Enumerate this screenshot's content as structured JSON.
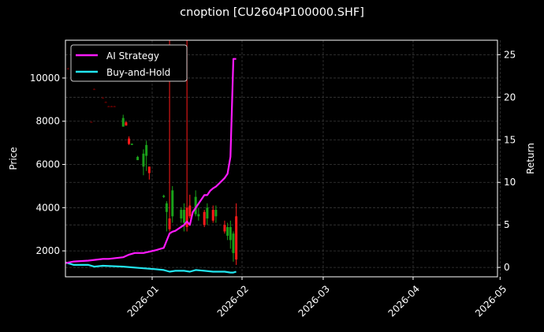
{
  "title": "cnoption [CU2604P100000.SHF]",
  "colors": {
    "background": "#000000",
    "ai_strategy": "#ff1aff",
    "buy_and_hold": "#22e6f0",
    "candle_up": "#1aa01a",
    "candle_down": "#ff1a1a",
    "candle_faint": "#5a0000",
    "grid": "#3a3a3a",
    "axis": "#ffffff"
  },
  "chart_data": {
    "type": "line",
    "title": "cnoption [CU2604P100000.SHF]",
    "xlabel": "",
    "ylabel_left": "Price",
    "ylabel_right": "Return",
    "x_ticks": [
      "2026-01",
      "2026-02",
      "2026-03",
      "2026-04",
      "2026-05"
    ],
    "y_left_ticks": [
      2000,
      4000,
      6000,
      8000,
      10000
    ],
    "y_right_ticks": [
      0,
      5,
      10,
      15,
      20,
      25
    ],
    "ylim_left": [
      800,
      11750
    ],
    "ylim_right": [
      -1.1,
      26.7
    ],
    "xlim": [
      "2025-12-02",
      "2026-05-01"
    ],
    "grid": true,
    "legend_position": "upper left",
    "legend": [
      "AI Strategy",
      "Buy-and-Hold"
    ],
    "series": [
      {
        "name": "AI Strategy",
        "axis": "right",
        "x": [
          "2025-12-02",
          "2025-12-05",
          "2025-12-10",
          "2025-12-15",
          "2025-12-17",
          "2025-12-22",
          "2025-12-24",
          "2025-12-26",
          "2025-12-29",
          "2026-01-02",
          "2026-01-05",
          "2026-01-07",
          "2026-01-08",
          "2026-01-09",
          "2026-01-12",
          "2026-01-13",
          "2026-01-14",
          "2026-01-15",
          "2026-01-19",
          "2026-01-20",
          "2026-01-21",
          "2026-01-22",
          "2026-01-23",
          "2026-01-26",
          "2026-01-27",
          "2026-01-28",
          "2026-01-29",
          "2026-01-30"
        ],
        "values": [
          0.5,
          0.7,
          0.8,
          1.0,
          1.0,
          1.2,
          1.5,
          1.7,
          1.7,
          2.0,
          2.3,
          4.0,
          4.2,
          4.3,
          5.0,
          5.4,
          5.0,
          6.5,
          8.5,
          8.5,
          9.0,
          9.3,
          9.5,
          10.5,
          11.0,
          13.0,
          24.5,
          24.5
        ]
      },
      {
        "name": "Buy-and-Hold",
        "axis": "right",
        "x": [
          "2025-12-02",
          "2025-12-05",
          "2025-12-10",
          "2025-12-12",
          "2025-12-15",
          "2025-12-22",
          "2025-12-29",
          "2026-01-02",
          "2026-01-05",
          "2026-01-07",
          "2026-01-09",
          "2026-01-12",
          "2026-01-14",
          "2026-01-16",
          "2026-01-19",
          "2026-01-22",
          "2026-01-26",
          "2026-01-28",
          "2026-01-29",
          "2026-01-30"
        ],
        "values": [
          0.6,
          0.3,
          0.3,
          0.1,
          0.2,
          0.1,
          -0.1,
          -0.2,
          -0.3,
          -0.5,
          -0.4,
          -0.4,
          -0.5,
          -0.3,
          -0.4,
          -0.5,
          -0.5,
          -0.6,
          -0.6,
          -0.5
        ]
      }
    ],
    "candles": [
      {
        "date": "2025-12-03",
        "open": 10450,
        "high": 10480,
        "low": 10430,
        "close": 10420,
        "kind": "faint"
      },
      {
        "date": "2025-12-06",
        "open": 10350,
        "high": 10380,
        "low": 10320,
        "close": 10330,
        "kind": "faint"
      },
      {
        "date": "2025-12-09",
        "open": 10000,
        "high": 10030,
        "low": 9980,
        "close": 9990,
        "kind": "faint"
      },
      {
        "date": "2025-12-12",
        "open": 9500,
        "high": 9520,
        "low": 9480,
        "close": 9490,
        "kind": "faint"
      },
      {
        "date": "2025-12-15",
        "open": 9100,
        "high": 9130,
        "low": 9080,
        "close": 9090,
        "kind": "faint"
      },
      {
        "date": "2025-12-16",
        "open": 8900,
        "high": 8920,
        "low": 8880,
        "close": 8890,
        "kind": "faint"
      },
      {
        "date": "2025-12-17",
        "open": 8700,
        "high": 8720,
        "low": 8680,
        "close": 8690,
        "kind": "faint"
      },
      {
        "date": "2025-12-18",
        "open": 8700,
        "high": 8720,
        "low": 8680,
        "close": 8690,
        "kind": "faint"
      },
      {
        "date": "2025-12-19",
        "open": 8700,
        "high": 8720,
        "low": 8680,
        "close": 8690,
        "kind": "faint"
      },
      {
        "date": "2025-12-11",
        "open": 7980,
        "high": 8000,
        "low": 7960,
        "close": 7970,
        "kind": "faint"
      },
      {
        "date": "2025-12-22",
        "open": 7750,
        "high": 8300,
        "low": 7750,
        "close": 8150,
        "kind": "up"
      },
      {
        "date": "2025-12-23",
        "open": 7950,
        "high": 8000,
        "low": 7800,
        "close": 7800,
        "kind": "down"
      },
      {
        "date": "2025-12-24",
        "open": 7200,
        "high": 7300,
        "low": 6900,
        "close": 6950,
        "kind": "down"
      },
      {
        "date": "2025-12-25",
        "open": 6950,
        "high": 6970,
        "low": 6900,
        "close": 6960,
        "kind": "up"
      },
      {
        "date": "2025-12-27",
        "open": 6200,
        "high": 6400,
        "low": 6200,
        "close": 6350,
        "kind": "up"
      },
      {
        "date": "2025-12-29",
        "open": 5900,
        "high": 6700,
        "low": 5500,
        "close": 6500,
        "kind": "up"
      },
      {
        "date": "2025-12-30",
        "open": 6400,
        "high": 7100,
        "low": 5700,
        "close": 6900,
        "kind": "up"
      },
      {
        "date": "2025-12-31",
        "open": 5900,
        "high": 5900,
        "low": 5300,
        "close": 5600,
        "kind": "down"
      },
      {
        "date": "2026-01-05",
        "open": 4500,
        "high": 4600,
        "low": 4450,
        "close": 4550,
        "kind": "up"
      },
      {
        "date": "2026-01-06",
        "open": 3800,
        "high": 4300,
        "low": 2900,
        "close": 4200,
        "kind": "up"
      },
      {
        "date": "2026-01-07",
        "open": 3500,
        "high": 11750,
        "low": 2900,
        "close": 3000,
        "kind": "down"
      },
      {
        "date": "2026-01-08",
        "open": 3600,
        "high": 5000,
        "low": 3300,
        "close": 4800,
        "kind": "up"
      },
      {
        "date": "2026-01-11",
        "open": 3500,
        "high": 4000,
        "low": 3300,
        "close": 3900,
        "kind": "up"
      },
      {
        "date": "2026-01-12",
        "open": 3300,
        "high": 4200,
        "low": 2900,
        "close": 3900,
        "kind": "up"
      },
      {
        "date": "2026-01-13",
        "open": 4000,
        "high": 11750,
        "low": 2900,
        "close": 3100,
        "kind": "down"
      },
      {
        "date": "2026-01-14",
        "open": 4100,
        "high": 4600,
        "low": 3500,
        "close": 3600,
        "kind": "down"
      },
      {
        "date": "2026-01-16",
        "open": 3700,
        "high": 4800,
        "low": 3600,
        "close": 4500,
        "kind": "up"
      },
      {
        "date": "2026-01-17",
        "open": 3600,
        "high": 4000,
        "low": 3400,
        "close": 3700,
        "kind": "up"
      },
      {
        "date": "2026-01-19",
        "open": 3800,
        "high": 3900,
        "low": 3100,
        "close": 3200,
        "kind": "down"
      },
      {
        "date": "2026-01-20",
        "open": 3500,
        "high": 4200,
        "low": 3200,
        "close": 4000,
        "kind": "up"
      },
      {
        "date": "2026-01-22",
        "open": 3900,
        "high": 4100,
        "low": 3300,
        "close": 3400,
        "kind": "down"
      },
      {
        "date": "2026-01-23",
        "open": 3600,
        "high": 4100,
        "low": 3300,
        "close": 3900,
        "kind": "up"
      },
      {
        "date": "2026-01-26",
        "open": 3200,
        "high": 3400,
        "low": 2800,
        "close": 2900,
        "kind": "down"
      },
      {
        "date": "2026-01-27",
        "open": 2700,
        "high": 3300,
        "low": 2500,
        "close": 3100,
        "kind": "up"
      },
      {
        "date": "2026-01-28",
        "open": 2500,
        "high": 3400,
        "low": 2100,
        "close": 3100,
        "kind": "up"
      },
      {
        "date": "2026-01-29",
        "open": 1900,
        "high": 2900,
        "low": 1500,
        "close": 2800,
        "kind": "up"
      },
      {
        "date": "2026-01-30",
        "open": 3600,
        "high": 4200,
        "low": 1350,
        "close": 1600,
        "kind": "down"
      }
    ]
  }
}
